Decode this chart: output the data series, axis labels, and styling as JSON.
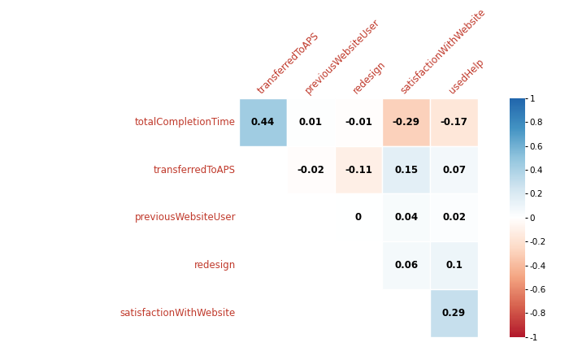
{
  "row_labels": [
    "totalCompletionTime",
    "transferredToAPS",
    "previousWebsiteUser",
    "redesign",
    "satisfactionWithWebsite"
  ],
  "col_labels": [
    "transferredToAPS",
    "previousWebsiteUser",
    "redesign",
    "satisfactionWithWebsite",
    "usedHelp"
  ],
  "matrix": [
    [
      0.44,
      0.01,
      -0.01,
      -0.29,
      -0.17
    ],
    [
      null,
      -0.02,
      -0.11,
      0.15,
      0.07
    ],
    [
      null,
      null,
      0.0,
      0.04,
      0.02
    ],
    [
      null,
      null,
      null,
      0.06,
      0.1
    ],
    [
      null,
      null,
      null,
      null,
      0.29
    ]
  ],
  "vmin": -1,
  "vmax": 1,
  "background": "#ffffff",
  "text_color": "#000000",
  "label_color": "#c0392b",
  "colorbar_ticks": [
    1,
    0.8,
    0.6,
    0.4,
    0.2,
    0,
    -0.2,
    -0.4,
    -0.6,
    -0.8,
    -1
  ],
  "col_label_fontsize": 8.5,
  "row_label_fontsize": 8.5,
  "cell_text_fontsize": 8.5,
  "colorbar_fontsize": 7.5
}
